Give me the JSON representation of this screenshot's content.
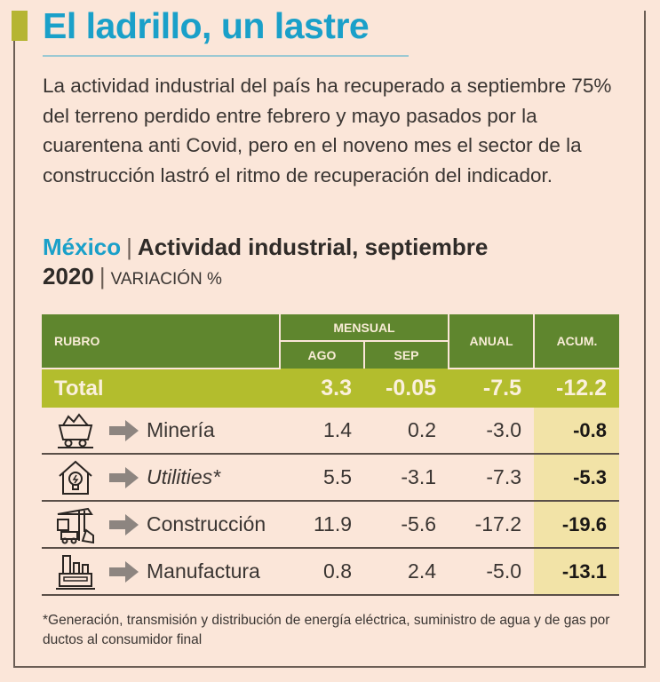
{
  "header": {
    "title": "El ladrillo, un lastre",
    "lead": "La actividad industrial del país ha recuperado a septiembre 75% del terreno perdido entre febrero y mayo pasados por la cuarentena anti Covid, pero en el noveno mes el sector de la construcción lastró el ritmo de recuperación del indicador.",
    "country": "México",
    "subtitle": "Actividad industrial, septiembre 2020",
    "unit": "VARIACIÓN %"
  },
  "colors": {
    "title": "#1aa0c9",
    "header_green": "#5f862e",
    "total_green": "#b3bd2d",
    "acum_bg": "#f2e3a7",
    "background": "#fbe6d9"
  },
  "chart_data": {
    "type": "table",
    "title": "Actividad industrial, septiembre 2020",
    "columns": {
      "rubro": "RUBRO",
      "mensual": "MENSUAL",
      "ago": "AGO",
      "sep": "SEP",
      "anual": "ANUAL",
      "acum": "ACUM."
    },
    "total": {
      "name": "Total",
      "ago": "3.3",
      "sep": "-0.05",
      "anual": "-7.5",
      "acum": "-12.2"
    },
    "rows": [
      {
        "name": "Minería",
        "icon": "mine-cart-icon",
        "ago": "1.4",
        "sep": "0.2",
        "anual": "-3.0",
        "acum": "-0.8"
      },
      {
        "name": "Utilities*",
        "icon": "house-bulb-icon",
        "ago": "5.5",
        "sep": "-3.1",
        "anual": "-7.3",
        "acum": "-5.3"
      },
      {
        "name": "Construcción",
        "icon": "crane-icon",
        "ago": "11.9",
        "sep": "-5.6",
        "anual": "-17.2",
        "acum": "-19.6"
      },
      {
        "name": "Manufactura",
        "icon": "factory-icon",
        "ago": "0.8",
        "sep": "2.4",
        "anual": "-5.0",
        "acum": "-13.1"
      }
    ]
  },
  "footnote": "*Generación, transmisión y distribución de energía eléctrica, suministro de agua y de gas por ductos al consumidor final"
}
